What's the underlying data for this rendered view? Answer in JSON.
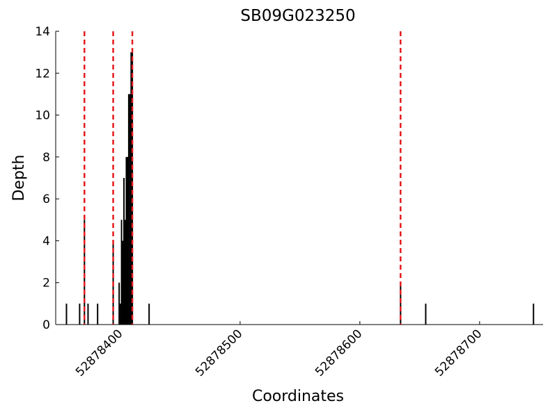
{
  "chart_data": {
    "type": "bar",
    "title": "SB09G023250",
    "xlabel": "Coordinates",
    "ylabel": "Depth",
    "x": [
      52878355,
      52878366,
      52878370,
      52878373,
      52878381,
      52878394,
      52878399,
      52878400,
      52878401,
      52878402,
      52878403,
      52878404,
      52878405,
      52878406,
      52878407,
      52878408,
      52878409,
      52878410,
      52878424,
      52878634,
      52878655,
      52878745
    ],
    "values": [
      1,
      1,
      5,
      1,
      1,
      4,
      2,
      1,
      5,
      4,
      7,
      5,
      8,
      8,
      11,
      11,
      13,
      13,
      1,
      2,
      1,
      1
    ],
    "color": "#000000",
    "vlines": [
      52878370,
      52878394,
      52878410,
      52878634
    ],
    "vline_color": "#e41a1c",
    "xlim": [
      52878346,
      52878753
    ],
    "xticks": [
      52878400,
      52878500,
      52878600,
      52878700
    ],
    "ylim": [
      0,
      14
    ],
    "yticks": [
      0,
      2,
      4,
      6,
      8,
      10,
      12,
      14
    ],
    "grid": false
  }
}
